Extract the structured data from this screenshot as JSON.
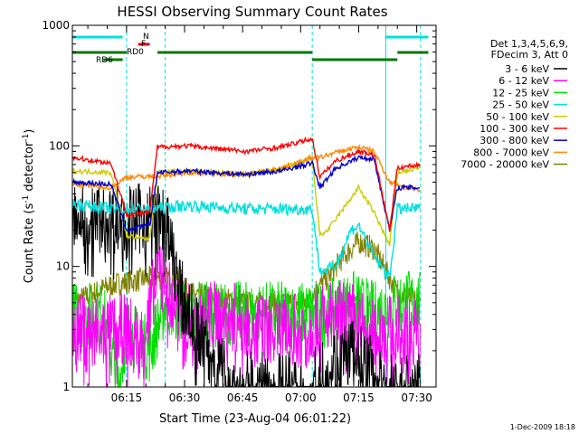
{
  "title": "HESSI Observing Summary Count Rates",
  "footer_date": "1-Dec-2009 18:18",
  "chart_data": {
    "type": "line",
    "title": "HESSI Observing Summary Count Rates",
    "xlabel": "Start Time (23-Aug-04 06:01:22)",
    "ylabel_parts": [
      "Count Rate (s",
      "-1",
      " detector",
      "-1",
      ")"
    ],
    "y_scale": "log",
    "ylim": [
      1,
      1000
    ],
    "y_ticks": [
      {
        "v": 1,
        "label": "1"
      },
      {
        "v": 10,
        "label": "10"
      },
      {
        "v": 100,
        "label": "100"
      },
      {
        "v": 1000,
        "label": "1000"
      }
    ],
    "x_range_min": [
      0,
      68
    ],
    "x_ticks": [
      {
        "t": 14,
        "label": "06:15"
      },
      {
        "t": 29,
        "label": "06:30"
      },
      {
        "t": 44,
        "label": "06:45"
      },
      {
        "t": 59,
        "label": "07:00"
      },
      {
        "t": 74,
        "label": "07:15"
      },
      {
        "t": 89,
        "label": "07:30"
      }
    ],
    "legend_header": [
      "Det 1,3,4,5,6,9,",
      "FDecim 3, Att 0"
    ],
    "series": [
      {
        "name": "3 - 6 keV",
        "color": "#000000",
        "key": [
          [
            24,
            25
          ],
          [
            26,
            12
          ],
          [
            28,
            6
          ],
          [
            32,
            3
          ],
          [
            36,
            2
          ],
          [
            42,
            1
          ],
          [
            52,
            1
          ],
          [
            62,
            1
          ],
          [
            66,
            1.5
          ],
          [
            72,
            2
          ],
          [
            76,
            1.5
          ],
          [
            80,
            1
          ],
          [
            90,
            1
          ]
        ]
      },
      {
        "name": "6 - 12 keV",
        "color": "#ff00ff",
        "key": [
          [
            14,
            3
          ],
          [
            18,
            2.5
          ],
          [
            23,
            12
          ],
          [
            25,
            6
          ],
          [
            28,
            4
          ],
          [
            40,
            4
          ],
          [
            50,
            3
          ],
          [
            60,
            3
          ],
          [
            66,
            4
          ],
          [
            72,
            4
          ],
          [
            76,
            3
          ],
          [
            80,
            3
          ]
        ]
      },
      {
        "name": "12 - 25 keV",
        "color": "#00dd00",
        "key": [
          [
            8,
            4
          ],
          [
            12,
            1
          ],
          [
            14,
            3
          ],
          [
            20,
            2
          ],
          [
            24,
            5
          ],
          [
            30,
            4
          ],
          [
            45,
            4
          ],
          [
            60,
            4
          ],
          [
            66,
            4
          ],
          [
            72,
            5
          ],
          [
            78,
            4
          ],
          [
            84,
            5
          ],
          [
            90,
            5
          ]
        ]
      },
      {
        "name": "25 - 50 keV",
        "color": "#00e0e0",
        "key": [
          [
            0,
            33
          ],
          [
            10,
            30
          ],
          [
            20,
            30
          ],
          [
            30,
            32
          ],
          [
            45,
            30
          ],
          [
            54,
            30
          ],
          [
            62,
            30
          ],
          [
            64,
            9
          ],
          [
            68,
            10
          ],
          [
            72,
            20
          ],
          [
            74,
            22
          ],
          [
            78,
            12
          ],
          [
            82,
            8
          ],
          [
            84,
            30
          ],
          [
            90,
            30
          ]
        ]
      },
      {
        "name": "50 - 100 keV",
        "color": "#cccc00",
        "key": [
          [
            0,
            62
          ],
          [
            10,
            60
          ],
          [
            14,
            18
          ],
          [
            18,
            17
          ],
          [
            20,
            17
          ],
          [
            22,
            60
          ],
          [
            30,
            62
          ],
          [
            45,
            58
          ],
          [
            54,
            65
          ],
          [
            62,
            78
          ],
          [
            64,
            18
          ],
          [
            66,
            20
          ],
          [
            70,
            30
          ],
          [
            74,
            45
          ],
          [
            78,
            28
          ],
          [
            82,
            15
          ],
          [
            84,
            60
          ],
          [
            90,
            66
          ]
        ]
      },
      {
        "name": "100 - 300 keV",
        "color": "#ff0000",
        "key": [
          [
            0,
            80
          ],
          [
            10,
            72
          ],
          [
            14,
            27
          ],
          [
            20,
            28
          ],
          [
            22,
            98
          ],
          [
            30,
            100
          ],
          [
            45,
            90
          ],
          [
            54,
            98
          ],
          [
            62,
            115
          ],
          [
            64,
            55
          ],
          [
            68,
            75
          ],
          [
            74,
            90
          ],
          [
            78,
            85
          ],
          [
            82,
            20
          ],
          [
            84,
            66
          ],
          [
            90,
            70
          ]
        ]
      },
      {
        "name": "300 - 800 keV",
        "color": "#0000cc",
        "key": [
          [
            0,
            50
          ],
          [
            10,
            48
          ],
          [
            14,
            20
          ],
          [
            20,
            22
          ],
          [
            22,
            60
          ],
          [
            30,
            62
          ],
          [
            45,
            58
          ],
          [
            54,
            62
          ],
          [
            62,
            72
          ],
          [
            64,
            45
          ],
          [
            68,
            65
          ],
          [
            74,
            80
          ],
          [
            78,
            78
          ],
          [
            82,
            20
          ],
          [
            84,
            45
          ],
          [
            90,
            45
          ]
        ]
      },
      {
        "name": "800 - 7000 keV",
        "color": "#ff8800",
        "key": [
          [
            0,
            48
          ],
          [
            10,
            45
          ],
          [
            14,
            55
          ],
          [
            20,
            56
          ],
          [
            22,
            56
          ],
          [
            30,
            60
          ],
          [
            45,
            58
          ],
          [
            54,
            65
          ],
          [
            62,
            80
          ],
          [
            64,
            80
          ],
          [
            68,
            88
          ],
          [
            74,
            98
          ],
          [
            78,
            90
          ],
          [
            82,
            50
          ],
          [
            84,
            48
          ],
          [
            90,
            42
          ]
        ]
      },
      {
        "name": "7000 - 20000 keV",
        "color": "#808000",
        "key": [
          [
            0,
            5
          ],
          [
            10,
            7
          ],
          [
            20,
            8
          ],
          [
            28,
            8
          ],
          [
            30,
            6
          ],
          [
            45,
            5
          ],
          [
            60,
            5
          ],
          [
            62,
            6
          ],
          [
            66,
            8
          ],
          [
            70,
            12
          ],
          [
            74,
            16
          ],
          [
            78,
            14
          ],
          [
            82,
            8
          ],
          [
            84,
            6
          ],
          [
            90,
            5
          ]
        ]
      }
    ],
    "status_bars": [
      {
        "label": "N",
        "color": "#00e0e0",
        "segments": [
          [
            0,
            13
          ],
          [
            81,
            92
          ]
        ],
        "level": "top"
      },
      {
        "label": "F",
        "color": "#dd0000",
        "segments": [
          [
            17,
            20
          ]
        ],
        "level": "mid"
      },
      {
        "label": "RD0",
        "color": "#007700",
        "segments": [
          [
            0,
            14
          ],
          [
            22,
            62
          ],
          [
            84,
            92
          ]
        ],
        "level": "low"
      },
      {
        "label": "RD6",
        "color": "#007700",
        "segments": [
          [
            8,
            13
          ],
          [
            62,
            84
          ]
        ],
        "level": "lower"
      }
    ],
    "vlines": [
      {
        "t": 0,
        "style": "solid"
      },
      {
        "t": 14,
        "style": "dashed"
      },
      {
        "t": 24,
        "style": "dashed"
      },
      {
        "t": 62,
        "style": "dashed"
      },
      {
        "t": 81,
        "style": "solid"
      },
      {
        "t": 90,
        "style": "dashed"
      }
    ]
  }
}
